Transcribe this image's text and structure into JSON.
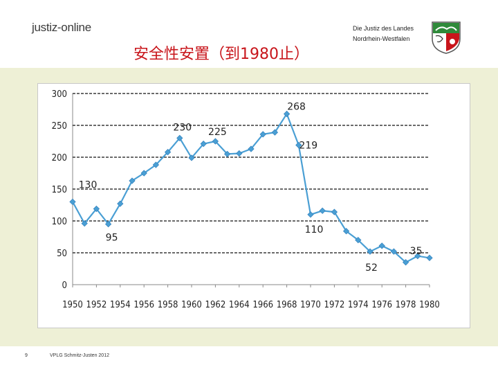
{
  "header": {
    "logo_text": "justiz-online",
    "institution_line1": "Die Justiz des Landes",
    "institution_line2": "Nordrhein-Westfalen",
    "crest_icon": "nrw-coat-of-arms-icon"
  },
  "slide": {
    "title": "安全性安置（到1980止）",
    "page_number": "9",
    "footer_text": "VPLG Schmitz-Justen 2012"
  },
  "colors": {
    "title": "#c8151b",
    "line": "#4a9fd4",
    "panel": "#eef0d6"
  },
  "chart_data": {
    "type": "line",
    "title": "",
    "xlabel": "",
    "ylabel": "",
    "ylim": [
      0,
      300
    ],
    "xlim": [
      1950,
      1980
    ],
    "yticks": [
      0,
      50,
      100,
      150,
      200,
      250,
      300
    ],
    "xticks": [
      1950,
      1952,
      1954,
      1956,
      1958,
      1960,
      1962,
      1964,
      1966,
      1968,
      1970,
      1972,
      1974,
      1976,
      1978,
      1980
    ],
    "grid": "dashed horizontal",
    "x": [
      1950,
      1951,
      1952,
      1953,
      1954,
      1955,
      1956,
      1957,
      1958,
      1959,
      1960,
      1961,
      1962,
      1963,
      1964,
      1965,
      1966,
      1967,
      1968,
      1969,
      1970,
      1971,
      1972,
      1973,
      1974,
      1975,
      1976,
      1977,
      1978,
      1979,
      1980
    ],
    "values": [
      130,
      96,
      119,
      95,
      127,
      163,
      175,
      188,
      208,
      230,
      199,
      221,
      225,
      205,
      206,
      213,
      236,
      239,
      268,
      219,
      110,
      116,
      114,
      84,
      70,
      52,
      61,
      52,
      35,
      45,
      42
    ],
    "annotations": [
      {
        "x": 1950,
        "label": "130"
      },
      {
        "x": 1953,
        "label": "95"
      },
      {
        "x": 1959,
        "label": "230"
      },
      {
        "x": 1962,
        "label": "225"
      },
      {
        "x": 1968,
        "label": "268"
      },
      {
        "x": 1969,
        "label": "219"
      },
      {
        "x": 1970,
        "label": "110"
      },
      {
        "x": 1975,
        "label": "52"
      },
      {
        "x": 1978,
        "label": "35"
      }
    ]
  }
}
